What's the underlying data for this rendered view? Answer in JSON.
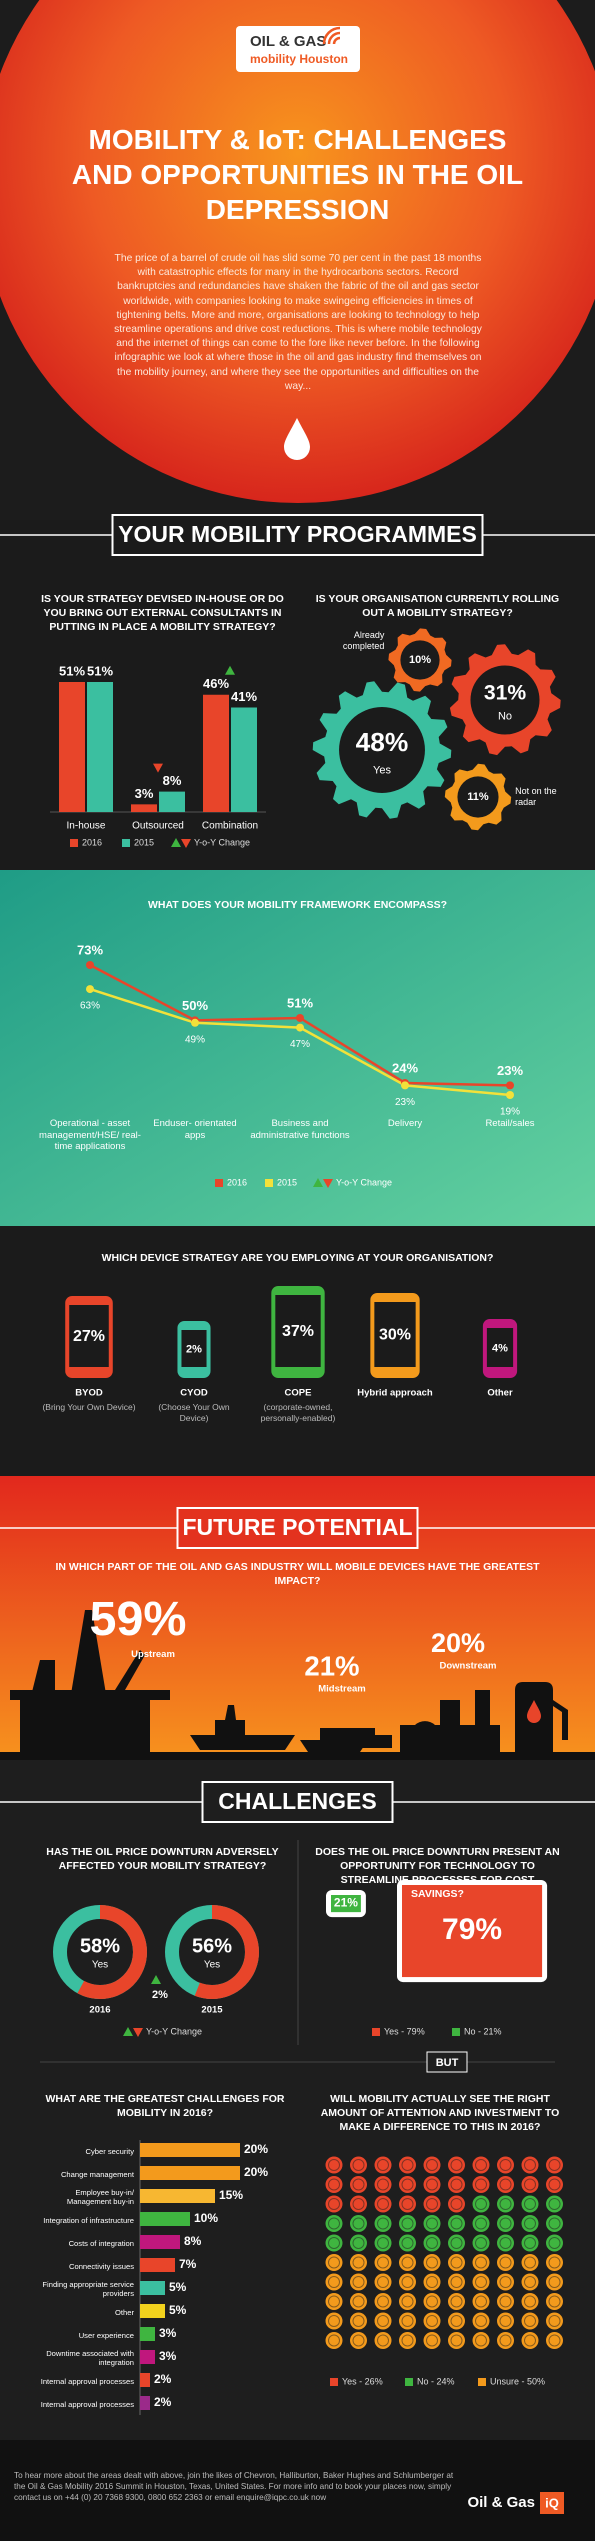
{
  "header": {
    "logo_line1": "OIL & GAS",
    "logo_line2": "mobility Houston",
    "title": "MOBILITY & IoT: CHALLENGES AND OPPORTUNITIES IN THE OIL DEPRESSION",
    "intro": "The price of a barrel of crude oil has slid some 70 per cent in the past 18 months with catastrophic effects for many in the hydrocarbons sectors. Record bankruptcies and redundancies have shaken the fabric of the oil and gas sector worldwide, with companies looking to make swingeing efficiencies in times of tightening belts. More and more, organisations are looking to technology to help streamline operations and drive cost reductions. This is where mobile technology and the internet of things can come to the fore like never before. In the following infographic we look at where those in the oil and gas industry find themselves on the mobility journey, and where they see the opportunities and difficulties on the way..."
  },
  "sections": {
    "programmes": "YOUR MOBILITY PROGRAMMES",
    "future": "FUTURE POTENTIAL",
    "challenges": "CHALLENGES"
  },
  "chart_data": [
    {
      "type": "bar",
      "title": "IS YOUR STRATEGY DEVISED IN-HOUSE OR DO YOU BRING OUT EXTERNAL CONSULTANTS IN PUTTING IN PLACE A MOBILITY STRATEGY?",
      "categories": [
        "In-house",
        "Outsourced",
        "Combination"
      ],
      "series": [
        {
          "name": "2016",
          "color": "#e8452a",
          "values": [
            51,
            3,
            46
          ],
          "value_labels": [
            "51%",
            "3%",
            "46%"
          ]
        },
        {
          "name": "2015",
          "color": "#3bbfa0",
          "values": [
            51,
            8,
            41
          ],
          "value_labels": [
            "51%",
            "8%",
            "41%"
          ]
        }
      ],
      "change_label": "Y-o-Y Change"
    },
    {
      "type": "gears",
      "title": "IS YOUR ORGANISATION CURRENTLY ROLLING OUT A MOBILITY STRATEGY?",
      "categories": [
        "Yes",
        "No",
        "Already completed",
        "Not on the radar"
      ],
      "values": [
        48,
        31,
        10,
        11
      ],
      "value_labels": [
        "48%",
        "31%",
        "10%",
        "11%"
      ],
      "colors": [
        "#3bbfa0",
        "#e8452a",
        "#f06a22",
        "#f39a1c"
      ]
    },
    {
      "type": "line",
      "title": "WHAT DOES YOUR MOBILITY FRAMEWORK ENCOMPASS?",
      "categories": [
        "Operational - asset management/HSE/ real-time applications",
        "Enduser- orientated apps",
        "Business and administrative functions",
        "Delivery",
        "Retail/sales"
      ],
      "series": [
        {
          "name": "2016",
          "color": "#e8452a",
          "values": [
            73,
            50,
            51,
            24,
            23
          ],
          "value_labels": [
            "73%",
            "50%",
            "51%",
            "24%",
            "23%"
          ]
        },
        {
          "name": "2015",
          "color": "#f2e13a",
          "values": [
            63,
            49,
            47,
            23,
            19
          ],
          "value_labels": [
            "63%",
            "49%",
            "47%",
            "23%",
            "19%"
          ]
        }
      ],
      "change_label": "Y-o-Y Change"
    },
    {
      "type": "devices",
      "title": "WHICH DEVICE STRATEGY ARE YOU EMPLOYING AT YOUR ORGANISATION?",
      "categories": [
        "BYOD",
        "CYOD",
        "COPE",
        "Hybrid approach",
        "Other"
      ],
      "descriptions": [
        "(Bring Your Own Device)",
        "(Choose Your Own Device)",
        "(corporate-owned, personally-enabled)",
        null,
        null
      ],
      "values": [
        27,
        2,
        37,
        30,
        4
      ],
      "value_labels": [
        "27%",
        "2%",
        "37%",
        "30%",
        "4%"
      ],
      "colors": [
        "#e8452a",
        "#3bbfa0",
        "#3fb540",
        "#f39a1c",
        "#c0177d"
      ]
    },
    {
      "type": "impact",
      "title": "IN WHICH PART OF THE OIL AND GAS INDUSTRY WILL MOBILE DEVICES HAVE THE GREATEST IMPACT?",
      "categories": [
        "Upstream",
        "Midstream",
        "Downstream"
      ],
      "values": [
        59,
        21,
        20
      ],
      "value_labels": [
        "59%",
        "21%",
        "20%"
      ]
    },
    {
      "type": "donut",
      "title": "HAS THE OIL PRICE DOWNTURN ADVERSELY AFFECTED YOUR MOBILITY STRATEGY?",
      "categories": [
        "2016",
        "2015"
      ],
      "values": [
        58,
        56
      ],
      "value_labels": [
        "58%",
        "56%"
      ],
      "center_label": "Yes",
      "colors": [
        "#e8452a",
        "#3bbfa0"
      ],
      "change": {
        "value": 2,
        "label": "2%"
      },
      "change_label": "Y-o-Y Change"
    },
    {
      "type": "tablet",
      "title": "DOES THE OIL PRICE DOWNTURN PRESENT AN OPPORTUNITY FOR TECHNOLOGY TO STREAMLINE PROCESSES FOR COST SAVINGS?",
      "categories": [
        "Yes",
        "No"
      ],
      "values": [
        79,
        21
      ],
      "value_labels": [
        "79%",
        "21%"
      ],
      "legend_labels": [
        "Yes - 79%",
        "No - 21%"
      ],
      "colors": [
        "#e8452a",
        "#3fb540"
      ]
    },
    {
      "type": "hbar",
      "title": "WHAT ARE THE GREATEST CHALLENGES FOR MOBILITY IN 2016?",
      "categories": [
        "Cyber security",
        "Change management",
        "Employee buy-in/ Management buy-in",
        "Integration of infrastructure",
        "Costs of integration",
        "Connectivity issues",
        "Finding appropriate service providers",
        "Other",
        "User experience",
        "Downtime associated with integration",
        "Internal approval processes",
        "Internal approval processes"
      ],
      "values": [
        20,
        20,
        15,
        10,
        8,
        7,
        5,
        5,
        3,
        3,
        2,
        2
      ],
      "value_labels": [
        "20%",
        "20%",
        "15%",
        "10%",
        "8%",
        "7%",
        "5%",
        "5%",
        "3%",
        "3%",
        "2%",
        "2%"
      ],
      "colors": [
        "#f39a1c",
        "#f39a1c",
        "#f7b731",
        "#3fb540",
        "#c0177d",
        "#e8452a",
        "#3bbfa0",
        "#f2d21d",
        "#3fb540",
        "#c0177d",
        "#e8452a",
        "#9b2a8a"
      ]
    },
    {
      "type": "waffle",
      "separator": "BUT",
      "title": "WILL MOBILITY ACTUALLY SEE THE RIGHT AMOUNT OF ATTENTION AND INVESTMENT TO MAKE A DIFFERENCE TO THIS IN 2016?",
      "categories": [
        "Yes",
        "No",
        "Unsure"
      ],
      "values": [
        26,
        24,
        50
      ],
      "legend_labels": [
        "Yes - 26%",
        "No - 24%",
        "Unsure - 50%"
      ],
      "colors": [
        "#e8452a",
        "#3fb540",
        "#f39a1c"
      ]
    }
  ],
  "footer": {
    "text": "To hear more about the areas dealt with above, join the likes of Chevron, Halliburton, Baker Hughes and Schlumberger at the Oil & Gas Mobility 2016 Summit in Houston, Texas, United States. For more info and to book your places now, simply contact us on +44 (0) 20 7368 9300, 0800 652 2363 or email enquire@iqpc.co.uk now",
    "logo": "Oil & Gas",
    "logo_badge": "iQ"
  }
}
